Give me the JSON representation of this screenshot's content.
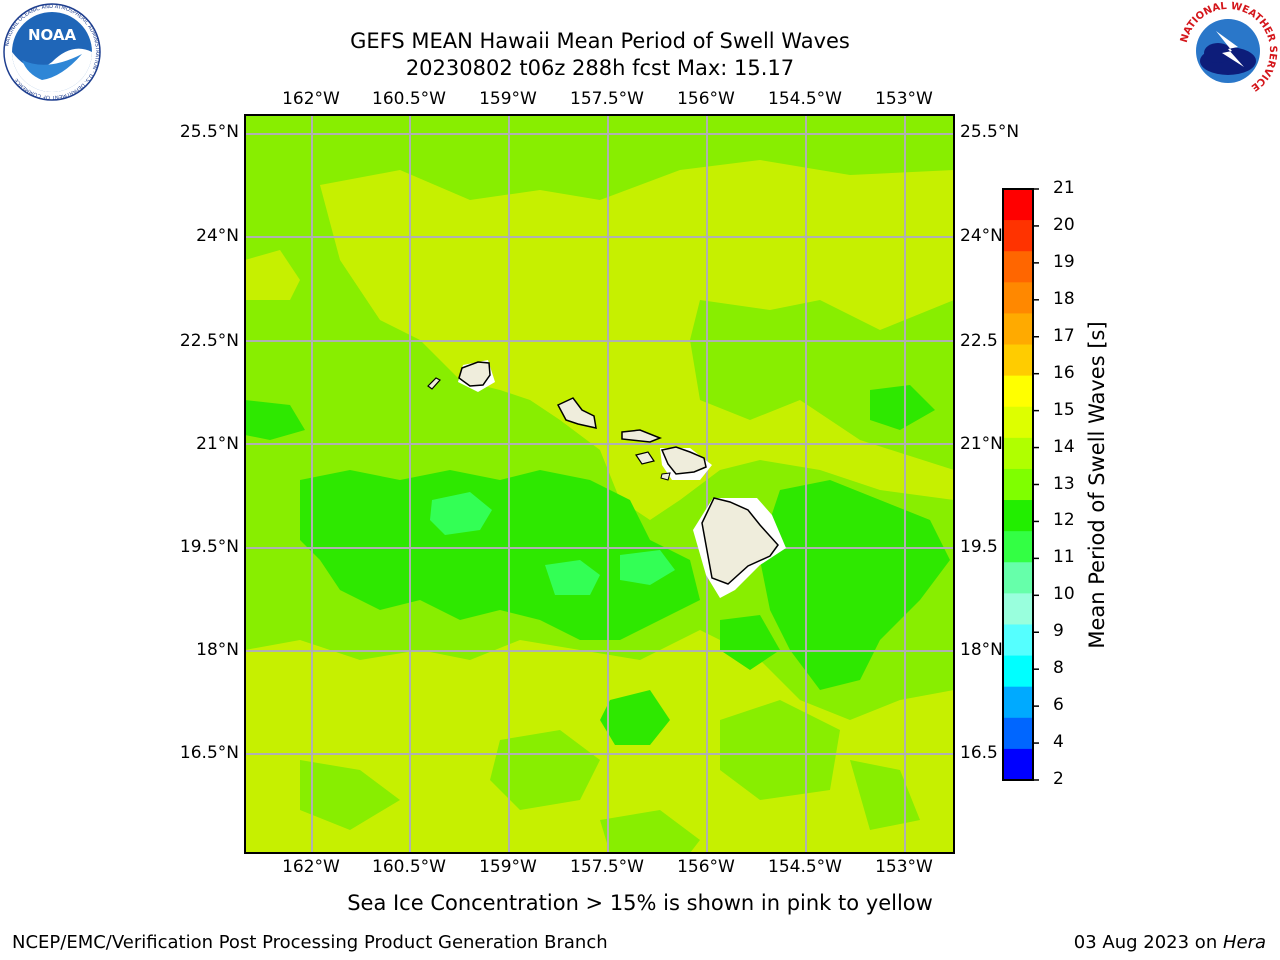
{
  "header": {
    "title_line1": "GEFS MEAN Hawaii Mean Period of Swell Waves",
    "title_line2": "20230802 t06z 288h fcst   Max: 15.17"
  },
  "logos": {
    "left": "noaa-logo",
    "right": "nws-logo",
    "left_text": "NOAA",
    "left_ring_text": "NATIONAL OCEANIC AND ATMOSPHERIC ADMINISTRATION · U.S. DEPARTMENT OF COMMERCE",
    "right_ring_text": "NATIONAL WEATHER SERVICE"
  },
  "map": {
    "lon_ticks": [
      "162°W",
      "160.5°W",
      "159°W",
      "157.5°W",
      "156°W",
      "154.5°W",
      "153°W"
    ],
    "lat_ticks_left": [
      "25.5°N",
      "24°N",
      "22.5°N",
      "21°N",
      "19.5°N",
      "18°N",
      "16.5°N"
    ],
    "lat_ticks_right": [
      "25.5°N",
      "24°N",
      "22.5",
      "21°N",
      "19.5",
      "18°N",
      "16.5"
    ],
    "lon_range": [
      -163,
      -152.3
    ],
    "lat_range": [
      15.1,
      25.8
    ],
    "colors": {
      "field_base": "#88ee00",
      "band_12_13": "#88ee00",
      "band_13_14": "#c6f000",
      "band_11_12": "#2ee800",
      "band_10_11": "#33ff55",
      "land": "#efeddc",
      "grid": "#b0b0b0"
    }
  },
  "colorbar": {
    "label": "Mean Period of Swell Waves [s]",
    "ticks": [
      "21",
      "20",
      "19",
      "18",
      "17",
      "16",
      "15",
      "14",
      "13",
      "12",
      "11",
      "10",
      "9",
      "8",
      "6",
      "4",
      "2"
    ],
    "colors": [
      "#ff0000",
      "#ff3300",
      "#ff6600",
      "#ff8800",
      "#ffaa00",
      "#ffcc00",
      "#ffff00",
      "#ddff00",
      "#b0ff00",
      "#7fff00",
      "#22ee00",
      "#33ff44",
      "#66ffaa",
      "#99ffdd",
      "#55ffff",
      "#00ffff",
      "#00aaff",
      "#0066ff",
      "#0000ff"
    ],
    "max_value": 15.17
  },
  "caption": "Sea Ice Concentration > 15% is shown in pink to yellow",
  "footer": {
    "left": "NCEP/EMC/Verification Post Processing Product Generation Branch",
    "date": "03 Aug 2023 on ",
    "host": "Hera"
  }
}
